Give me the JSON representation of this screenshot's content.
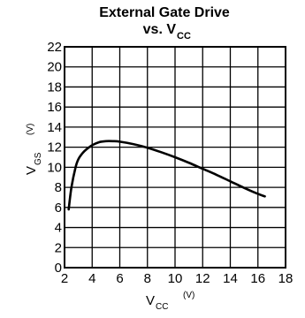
{
  "chart_data": {
    "type": "line",
    "title_line1": "External Gate Drive",
    "title_line2_main": "vs. V",
    "title_line2_sub": "CC",
    "xlabel_main": "V",
    "xlabel_sub": "CC",
    "xlabel_unit": "(V)",
    "ylabel_main": "V",
    "ylabel_sub": "GS",
    "ylabel_unit": "(V)",
    "xlim": [
      2,
      18
    ],
    "ylim": [
      0,
      22
    ],
    "x_ticks": [
      2,
      4,
      6,
      8,
      10,
      12,
      14,
      16,
      18
    ],
    "y_ticks": [
      0,
      2,
      4,
      6,
      8,
      10,
      12,
      14,
      16,
      18,
      20,
      22
    ],
    "x_grid_step": 2,
    "y_grid_step": 2,
    "grid": true,
    "series": [
      {
        "x": [
          2.3,
          2.5,
          2.8,
          3.0,
          3.3,
          3.6,
          4.0,
          4.5,
          5.0,
          5.5,
          6.0,
          7.0,
          8.0,
          9.0,
          10.0,
          11.0,
          12.0,
          13.0,
          14.0,
          15.0,
          16.0,
          16.5
        ],
        "y": [
          5.8,
          8.0,
          10.0,
          10.8,
          11.4,
          11.8,
          12.2,
          12.5,
          12.6,
          12.6,
          12.55,
          12.3,
          11.95,
          11.5,
          11.0,
          10.45,
          9.85,
          9.25,
          8.6,
          7.95,
          7.35,
          7.1
        ]
      }
    ]
  }
}
